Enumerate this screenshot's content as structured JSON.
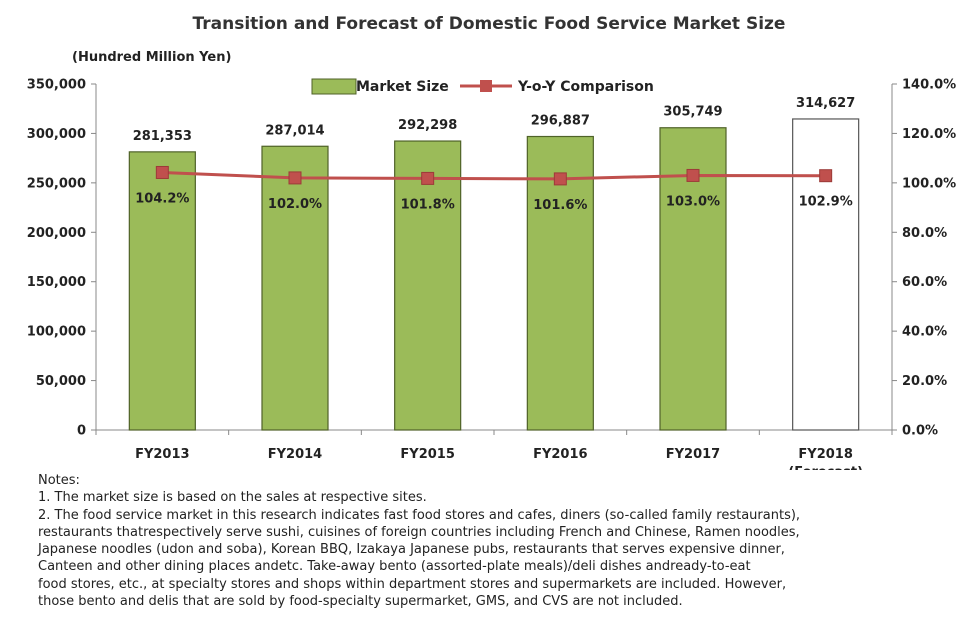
{
  "chart_data": {
    "type": "bar",
    "title": "Transition and Forecast of Domestic Food Service Market Size",
    "y_unit_label": "(Hundred Million Yen)",
    "categories": [
      "FY2013",
      "FY2014",
      "FY2015",
      "FY2016",
      "FY2017",
      "FY2018"
    ],
    "category_sublabels": [
      "",
      "",
      "",
      "",
      "",
      "(Forecast)"
    ],
    "series": [
      {
        "name": "Market Size",
        "type": "bar",
        "axis": "left",
        "color": "#9bbb59",
        "forecast_fill": "#ffffff",
        "values": [
          281353,
          287014,
          292298,
          296887,
          305749,
          314627
        ],
        "value_labels": [
          "281,353",
          "287,014",
          "292,298",
          "296,887",
          "305,749",
          "314,627"
        ],
        "forecast": [
          false,
          false,
          false,
          false,
          false,
          true
        ]
      },
      {
        "name": "Y-o-Y Comparison",
        "type": "line",
        "axis": "right",
        "color": "#c0504d",
        "values": [
          104.2,
          102.0,
          101.8,
          101.6,
          103.0,
          102.9
        ],
        "value_labels": [
          "104.2%",
          "102.0%",
          "101.8%",
          "101.6%",
          "103.0%",
          "102.9%"
        ]
      }
    ],
    "y_left": {
      "min": 0,
      "max": 350000,
      "step": 50000,
      "tick_labels": [
        "0",
        "50,000",
        "100,000",
        "150,000",
        "200,000",
        "250,000",
        "300,000",
        "350,000"
      ]
    },
    "y_right": {
      "min": 0,
      "max": 140,
      "step": 20,
      "tick_labels": [
        "0.0%",
        "20.0%",
        "40.0%",
        "60.0%",
        "80.0%",
        "100.0%",
        "120.0%",
        "140.0%"
      ]
    },
    "legend": "top-center",
    "grid": false
  },
  "notes": {
    "lines": [
      "Notes:",
      "1. The market size is based on the sales at respective sites.",
      "2. The food service market in this research indicates fast food stores and cafes, diners (so-called family restaurants),",
      "restaurants thatrespectively serve sushi, cuisines of foreign countries including French and Chinese, Ramen noodles,",
      "Japanese noodles (udon and soba), Korean BBQ, Izakaya Japanese pubs, restaurants that serves expensive dinner,",
      "Canteen and other dining places andetc. Take-away bento (assorted-plate meals)/deli dishes andready-to-eat",
      "food stores, etc., at specialty stores and shops within department stores and supermarkets are included.  However,",
      "those bento and delis that are sold by food-specialty supermarket, GMS, and CVS are not included."
    ]
  }
}
